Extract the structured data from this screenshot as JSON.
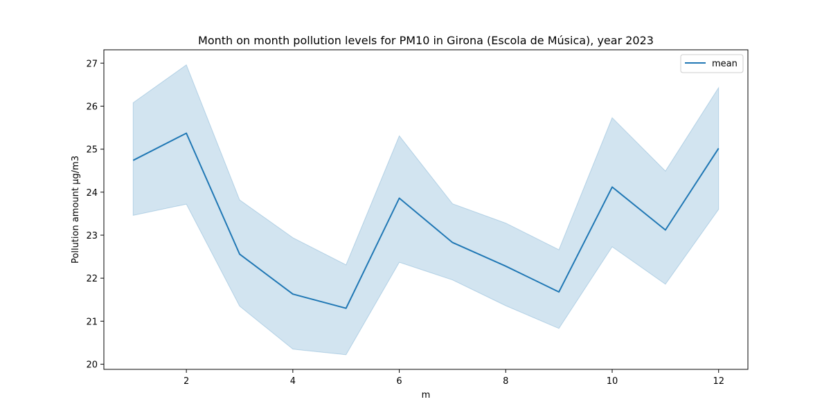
{
  "chart_data": {
    "type": "line",
    "title": "Month on month pollution levels for PM10 in Girona (Escola de Música), year 2023",
    "xlabel": "m",
    "ylabel": "Pollution amount µg/m3",
    "x": [
      1,
      2,
      3,
      4,
      5,
      6,
      7,
      8,
      9,
      10,
      11,
      12
    ],
    "series": [
      {
        "name": "mean",
        "values": [
          24.74,
          25.37,
          22.56,
          21.63,
          21.3,
          23.86,
          22.83,
          22.28,
          21.68,
          24.12,
          23.12,
          25.02
        ],
        "lower": [
          23.46,
          23.72,
          21.35,
          20.35,
          20.22,
          22.37,
          21.96,
          21.36,
          20.83,
          22.73,
          21.86,
          23.6
        ],
        "upper": [
          26.08,
          26.96,
          23.82,
          22.94,
          22.31,
          25.31,
          23.73,
          23.28,
          22.66,
          25.73,
          24.49,
          26.43
        ]
      }
    ],
    "xlim": [
      0.45,
      12.55
    ],
    "ylim": [
      19.88,
      27.31
    ],
    "xticks": [
      2,
      4,
      6,
      8,
      10,
      12
    ],
    "yticks": [
      20,
      21,
      22,
      23,
      24,
      25,
      26,
      27
    ],
    "grid": false,
    "legend_position": "top-right",
    "colors": {
      "line": "#1f77b4",
      "band": "#1f77b4"
    }
  }
}
